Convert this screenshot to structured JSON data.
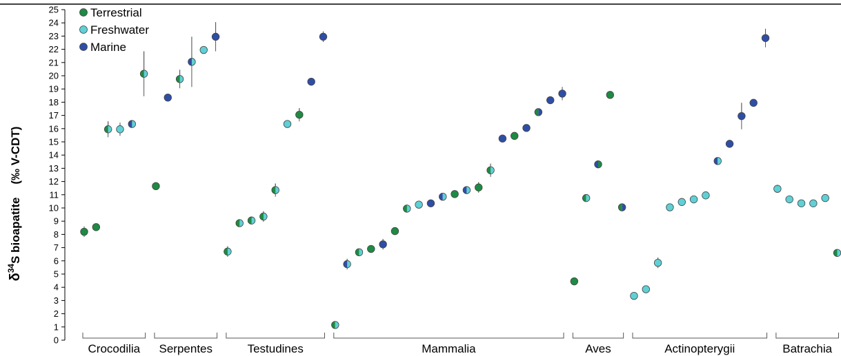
{
  "chart_data": {
    "type": "scatter",
    "ylabel_main": "δ",
    "ylabel_sup": "34",
    "ylabel_rest": "S bioapatite    (‰ V-CDT)",
    "ylim": [
      0,
      25
    ],
    "yticks": [
      0,
      1,
      2,
      3,
      4,
      5,
      6,
      7,
      8,
      9,
      10,
      11,
      12,
      13,
      14,
      15,
      16,
      17,
      18,
      19,
      20,
      21,
      22,
      23,
      24,
      25
    ],
    "colors": {
      "terrestrial": "#1e8a43",
      "freshwater": "#5fd0d6",
      "marine": "#2e4ea6",
      "error": "#555555"
    },
    "legend": [
      {
        "key": "terrestrial",
        "label": "Terrestrial"
      },
      {
        "key": "freshwater",
        "label": "Freshwater"
      },
      {
        "key": "marine",
        "label": "Marine"
      }
    ],
    "groups": [
      {
        "label": "Crocodilia",
        "start": 1,
        "end": 6
      },
      {
        "label": "Serpentes",
        "start": 7,
        "end": 12
      },
      {
        "label": "Testudines",
        "start": 13,
        "end": 21
      },
      {
        "label": "Mammalia",
        "start": 22,
        "end": 41
      },
      {
        "label": "Aves",
        "start": 42,
        "end": 46
      },
      {
        "label": "Actinopterygii",
        "start": 47,
        "end": 58
      },
      {
        "label": "Batrachia",
        "start": 59,
        "end": 64
      }
    ],
    "points": [
      {
        "x": 1,
        "y": 8.2,
        "err": 0.4,
        "left": "terrestrial",
        "right": "terrestrial"
      },
      {
        "x": 2,
        "y": 8.55,
        "err": 0,
        "left": "terrestrial",
        "right": "terrestrial"
      },
      {
        "x": 3,
        "y": 15.95,
        "err": 0.6,
        "left": "terrestrial",
        "right": "freshwater"
      },
      {
        "x": 4,
        "y": 15.95,
        "err": 0.5,
        "left": "freshwater",
        "right": "freshwater"
      },
      {
        "x": 5,
        "y": 16.35,
        "err": 0.2,
        "left": "marine",
        "right": "freshwater"
      },
      {
        "x": 6,
        "y": 20.15,
        "err": 1.7,
        "left": "terrestrial",
        "right": "freshwater"
      },
      {
        "x": 7,
        "y": 11.65,
        "err": 0.3,
        "left": "terrestrial",
        "right": "terrestrial"
      },
      {
        "x": 8,
        "y": 18.35,
        "err": 0,
        "left": "marine",
        "right": "marine"
      },
      {
        "x": 9,
        "y": 19.75,
        "err": 0.7,
        "left": "terrestrial",
        "right": "freshwater"
      },
      {
        "x": 10,
        "y": 21.05,
        "err": 1.9,
        "left": "marine",
        "right": "freshwater"
      },
      {
        "x": 11,
        "y": 21.95,
        "err": 0,
        "left": "freshwater",
        "right": "freshwater"
      },
      {
        "x": 12,
        "y": 22.95,
        "err": 1.1,
        "left": "marine",
        "right": "marine"
      },
      {
        "x": 13,
        "y": 6.7,
        "err": 0.4,
        "left": "terrestrial",
        "right": "freshwater"
      },
      {
        "x": 14,
        "y": 8.85,
        "err": 0.2,
        "left": "terrestrial",
        "right": "freshwater"
      },
      {
        "x": 15,
        "y": 9.05,
        "err": 0.2,
        "left": "terrestrial",
        "right": "freshwater"
      },
      {
        "x": 16,
        "y": 9.35,
        "err": 0.4,
        "left": "terrestrial",
        "right": "freshwater"
      },
      {
        "x": 17,
        "y": 11.35,
        "err": 0.5,
        "left": "terrestrial",
        "right": "freshwater"
      },
      {
        "x": 18,
        "y": 16.35,
        "err": 0,
        "left": "freshwater",
        "right": "freshwater"
      },
      {
        "x": 19,
        "y": 17.05,
        "err": 0.5,
        "left": "terrestrial",
        "right": "terrestrial"
      },
      {
        "x": 20,
        "y": 19.55,
        "err": 0,
        "left": "marine",
        "right": "marine"
      },
      {
        "x": 21,
        "y": 22.95,
        "err": 0.4,
        "left": "marine",
        "right": "marine"
      },
      {
        "x": 22,
        "y": 1.15,
        "err": 0,
        "left": "terrestrial",
        "right": "freshwater"
      },
      {
        "x": 23,
        "y": 5.75,
        "err": 0.4,
        "left": "marine",
        "right": "freshwater"
      },
      {
        "x": 24,
        "y": 6.65,
        "err": 0,
        "left": "terrestrial",
        "right": "freshwater"
      },
      {
        "x": 25,
        "y": 6.9,
        "err": 0,
        "left": "terrestrial",
        "right": "terrestrial"
      },
      {
        "x": 26,
        "y": 7.25,
        "err": 0.4,
        "left": "marine",
        "right": "marine"
      },
      {
        "x": 27,
        "y": 8.25,
        "err": 0,
        "left": "terrestrial",
        "right": "terrestrial"
      },
      {
        "x": 28,
        "y": 9.95,
        "err": 0.3,
        "left": "terrestrial",
        "right": "freshwater"
      },
      {
        "x": 29,
        "y": 10.25,
        "err": 0,
        "left": "freshwater",
        "right": "freshwater"
      },
      {
        "x": 30,
        "y": 10.35,
        "err": 0,
        "left": "marine",
        "right": "marine"
      },
      {
        "x": 31,
        "y": 10.85,
        "err": 0,
        "left": "marine",
        "right": "freshwater"
      },
      {
        "x": 32,
        "y": 11.05,
        "err": 0,
        "left": "terrestrial",
        "right": "terrestrial"
      },
      {
        "x": 33,
        "y": 11.35,
        "err": 0,
        "left": "marine",
        "right": "freshwater"
      },
      {
        "x": 34,
        "y": 11.55,
        "err": 0.4,
        "left": "terrestrial",
        "right": "terrestrial"
      },
      {
        "x": 35,
        "y": 12.85,
        "err": 0.5,
        "left": "terrestrial",
        "right": "freshwater"
      },
      {
        "x": 36,
        "y": 15.25,
        "err": 0,
        "left": "marine",
        "right": "marine"
      },
      {
        "x": 37,
        "y": 15.45,
        "err": 0,
        "left": "terrestrial",
        "right": "terrestrial"
      },
      {
        "x": 38,
        "y": 16.05,
        "err": 0,
        "left": "marine",
        "right": "marine"
      },
      {
        "x": 39,
        "y": 17.25,
        "err": 0,
        "left": "terrestrial",
        "right": "marine"
      },
      {
        "x": 40,
        "y": 18.15,
        "err": 0,
        "left": "marine",
        "right": "marine"
      },
      {
        "x": 41,
        "y": 18.65,
        "err": 0.5,
        "left": "marine",
        "right": "marine"
      },
      {
        "x": 42,
        "y": 4.45,
        "err": 0,
        "left": "terrestrial",
        "right": "terrestrial"
      },
      {
        "x": 43,
        "y": 10.75,
        "err": 0,
        "left": "terrestrial",
        "right": "freshwater"
      },
      {
        "x": 44,
        "y": 13.3,
        "err": 0,
        "left": "marine",
        "right": "terrestrial"
      },
      {
        "x": 45,
        "y": 18.55,
        "err": 0.2,
        "left": "terrestrial",
        "right": "terrestrial"
      },
      {
        "x": 46,
        "y": 10.05,
        "err": 0,
        "left": "terrestrial",
        "right": "marine"
      },
      {
        "x": 47,
        "y": 3.35,
        "err": 0,
        "left": "freshwater",
        "right": "freshwater"
      },
      {
        "x": 48,
        "y": 3.85,
        "err": 0,
        "left": "freshwater",
        "right": "freshwater"
      },
      {
        "x": 49,
        "y": 5.85,
        "err": 0.4,
        "left": "freshwater",
        "right": "freshwater"
      },
      {
        "x": 50,
        "y": 10.05,
        "err": 0,
        "left": "freshwater",
        "right": "freshwater"
      },
      {
        "x": 51,
        "y": 10.45,
        "err": 0,
        "left": "freshwater",
        "right": "freshwater"
      },
      {
        "x": 52,
        "y": 10.65,
        "err": 0,
        "left": "freshwater",
        "right": "freshwater"
      },
      {
        "x": 53,
        "y": 10.95,
        "err": 0,
        "left": "freshwater",
        "right": "freshwater"
      },
      {
        "x": 54,
        "y": 13.55,
        "err": 0,
        "left": "marine",
        "right": "freshwater"
      },
      {
        "x": 55,
        "y": 14.85,
        "err": 0,
        "left": "marine",
        "right": "marine"
      },
      {
        "x": 56,
        "y": 16.95,
        "err": 1.0,
        "left": "marine",
        "right": "marine"
      },
      {
        "x": 57,
        "y": 17.95,
        "err": 0,
        "left": "marine",
        "right": "marine"
      },
      {
        "x": 58,
        "y": 22.85,
        "err": 0.7,
        "left": "marine",
        "right": "marine"
      },
      {
        "x": 59,
        "y": 11.45,
        "err": 0.2,
        "left": "freshwater",
        "right": "freshwater"
      },
      {
        "x": 60,
        "y": 10.65,
        "err": 0,
        "left": "freshwater",
        "right": "freshwater"
      },
      {
        "x": 61,
        "y": 10.35,
        "err": 0,
        "left": "freshwater",
        "right": "freshwater"
      },
      {
        "x": 62,
        "y": 10.35,
        "err": 0,
        "left": "freshwater",
        "right": "freshwater"
      },
      {
        "x": 63,
        "y": 10.75,
        "err": 0,
        "left": "freshwater",
        "right": "freshwater"
      },
      {
        "x": 64,
        "y": 6.6,
        "err": 0,
        "left": "terrestrial",
        "right": "freshwater"
      }
    ]
  }
}
